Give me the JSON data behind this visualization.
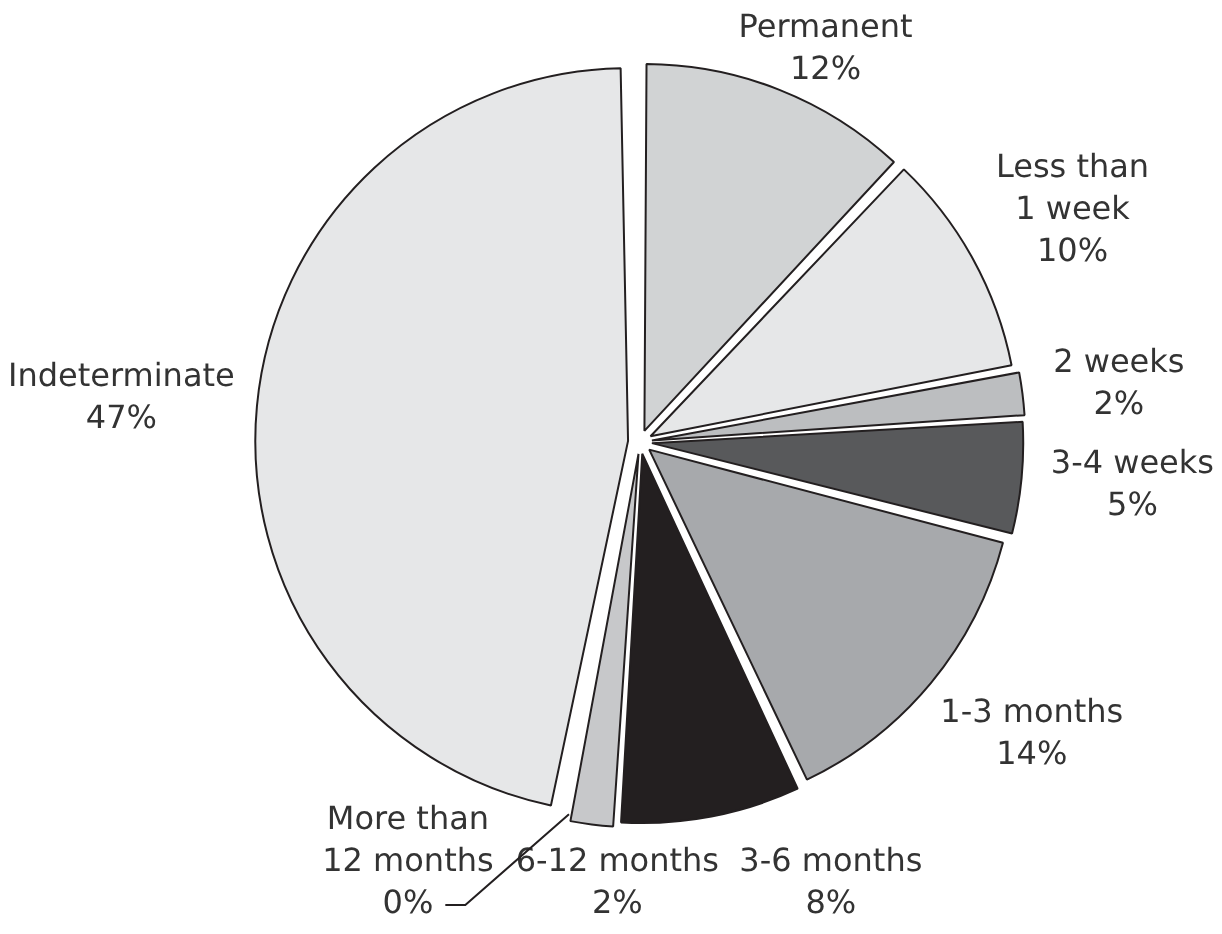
{
  "chart_data": {
    "type": "pie",
    "categories": [
      "Permanent",
      "Less than 1 week",
      "2 weeks",
      "3-4 weeks",
      "1-3 months",
      "3-6 months",
      "6-12 months",
      "More than 12 months",
      "Indeterminate"
    ],
    "values": [
      12,
      10,
      2,
      5,
      14,
      8,
      2,
      0,
      47
    ],
    "value_labels": [
      "12%",
      "10%",
      "2%",
      "5%",
      "14%",
      "8%",
      "2%",
      "0%",
      "47%"
    ],
    "colors": [
      "#d1d3d4",
      "#e6e7e8",
      "#bcbec0",
      "#58595b",
      "#a7a9ac",
      "#231f20",
      "#c7c8ca",
      "#d1d3d4",
      "#e6e7e8"
    ]
  }
}
